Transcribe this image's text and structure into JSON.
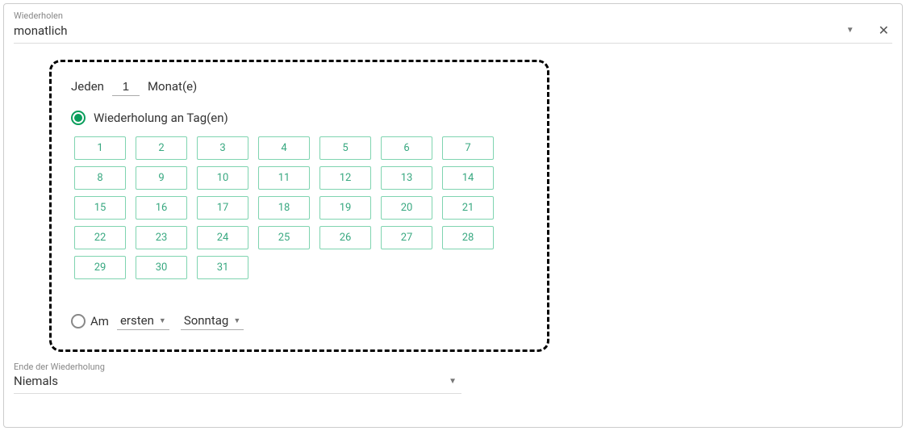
{
  "repeat": {
    "label": "Wiederholen",
    "value": "monatlich"
  },
  "interval": {
    "prefix": "Jeden",
    "value": "1",
    "suffix": "Monat(e)"
  },
  "onDays": {
    "label": "Wiederholung an Tag(en)",
    "selected": true,
    "days": [
      "1",
      "2",
      "3",
      "4",
      "5",
      "6",
      "7",
      "8",
      "9",
      "10",
      "11",
      "12",
      "13",
      "14",
      "15",
      "16",
      "17",
      "18",
      "19",
      "20",
      "21",
      "22",
      "23",
      "24",
      "25",
      "26",
      "27",
      "28",
      "29",
      "30",
      "31"
    ]
  },
  "onWeekday": {
    "label": "Am",
    "selected": false,
    "ordinal": "ersten",
    "weekday": "Sonntag"
  },
  "end": {
    "label": "Ende der Wiederholung",
    "value": "Niemals"
  },
  "colors": {
    "accent": "#0a9e5c",
    "dayBorder": "#7fd4b0",
    "dayText": "#38a880"
  }
}
